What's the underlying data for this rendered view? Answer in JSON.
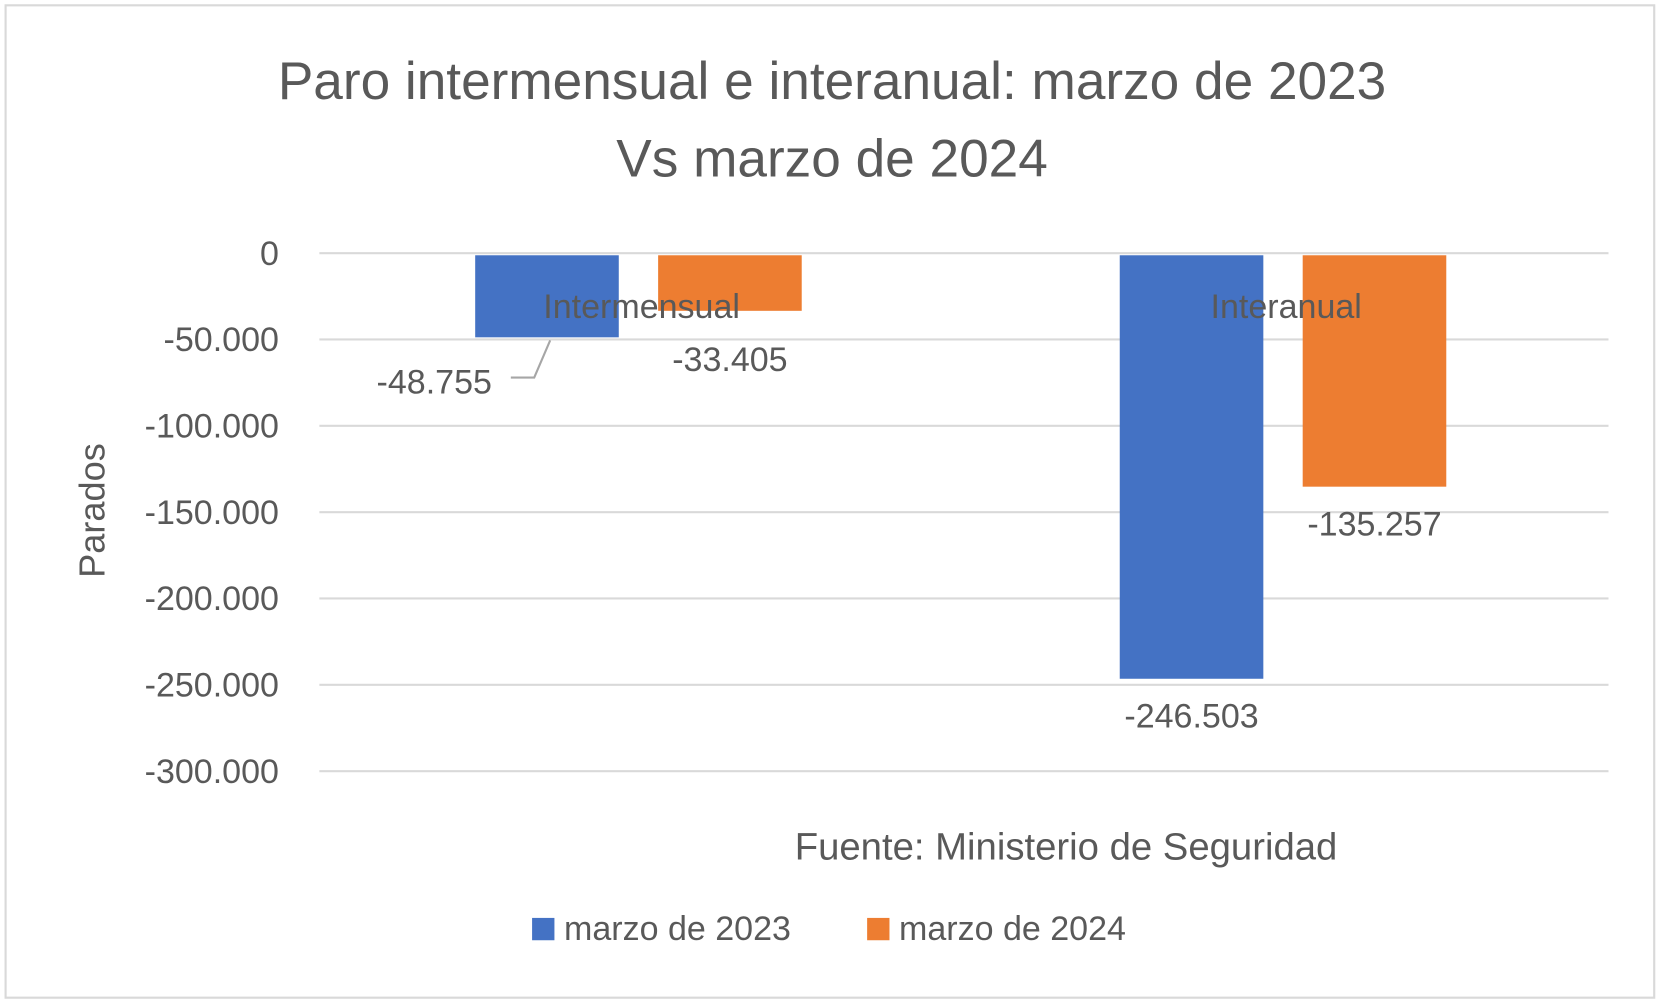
{
  "chart_data": {
    "type": "bar",
    "title_line1": "Paro intermensual e interanual: marzo de 2023",
    "title_line2": "Vs marzo de 2024",
    "ylabel": "Parados",
    "xlabel": "",
    "source_note": "Fuente: Ministerio de Seguridad",
    "categories": [
      "Intermensual",
      "Interanual"
    ],
    "ylim": [
      -300000,
      0
    ],
    "yticks": [
      0,
      -50000,
      -100000,
      -150000,
      -200000,
      -250000,
      -300000
    ],
    "ytick_labels": [
      "0",
      "-50.000",
      "-100.000",
      "-150.000",
      "-200.000",
      "-250.000",
      "-300.000"
    ],
    "grid": true,
    "legend_position": "bottom",
    "series": [
      {
        "name": "marzo de 2023",
        "color": "#4472C4",
        "values": [
          -48755,
          -246503
        ],
        "labels": [
          "-48.755",
          "-246.503"
        ]
      },
      {
        "name": "marzo de 2024",
        "color": "#ED7D31",
        "values": [
          -33405,
          -135257
        ],
        "labels": [
          "-33.405",
          "-135.257"
        ]
      }
    ]
  }
}
